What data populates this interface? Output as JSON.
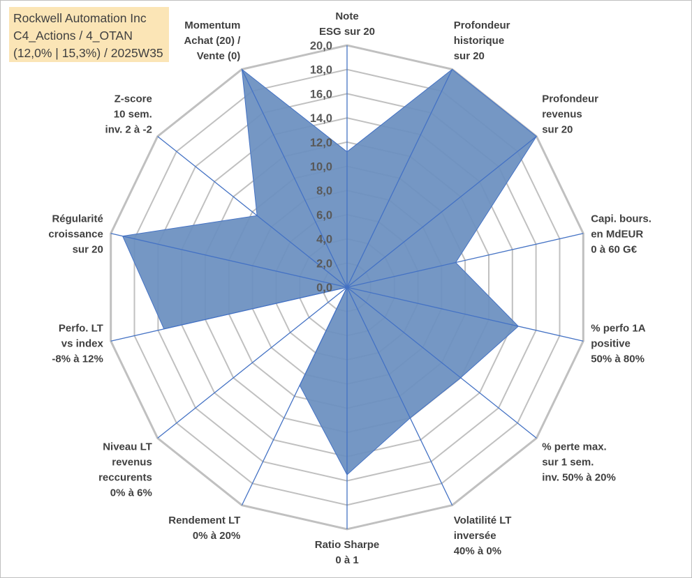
{
  "info_box": {
    "line1": "Rockwell Automation Inc",
    "line2": "C4_Actions / 4_OTAN",
    "line3": "(12,0% | 15,3%) / 2025W35"
  },
  "colors": {
    "fill": "#6a8fbf",
    "stroke": "#4472c4",
    "grid": "#c0c0c0",
    "info_box_bg": "#fbe5b6"
  },
  "chart_data": {
    "type": "radar",
    "ylim": [
      0,
      20
    ],
    "tick_step": 2,
    "tick_labels": [
      "0,0",
      "2,0",
      "4,0",
      "6,0",
      "8,0",
      "10,0",
      "12,0",
      "14,0",
      "16,0",
      "18,0",
      "20,0"
    ],
    "grid": true,
    "categories": [
      [
        "Note",
        "ESG sur 20"
      ],
      [
        "Profondeur",
        "historique",
        "sur 20"
      ],
      [
        "Profondeur",
        "revenus",
        "sur 20"
      ],
      [
        "Capi. bours.",
        "en MdEUR",
        "0 à 60 G€"
      ],
      [
        "% perfo 1A",
        "positive",
        "50% à 80%"
      ],
      [
        "% perte max.",
        "sur 1 sem.",
        "inv. 50% à 20%"
      ],
      [
        "Volatilité LT",
        "inversée",
        "40% à 0%"
      ],
      [
        "Ratio Sharpe",
        "0 à 1"
      ],
      [
        "Rendement LT",
        "0% à 20%"
      ],
      [
        "Niveau LT",
        "revenus",
        "reccurents",
        "0% à 6%"
      ],
      [
        "Perfo. LT",
        "vs index",
        "-8% à 12%"
      ],
      [
        "Régularité",
        "croissance",
        "sur 20"
      ],
      [
        "Z-score",
        "10 sem.",
        "inv. 2 à -2"
      ],
      [
        "Momentum",
        "Achat (20) /",
        "Vente (0)"
      ]
    ],
    "series": [
      {
        "values": [
          11.2,
          20.0,
          20.0,
          9.2,
          14.5,
          12.0,
          12.0,
          15.5,
          9.0,
          0.0,
          15.5,
          19.0,
          9.5,
          20.0
        ]
      }
    ]
  }
}
